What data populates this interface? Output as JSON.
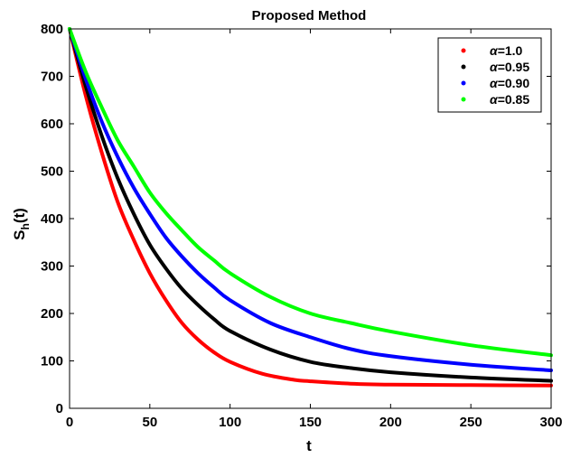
{
  "chart_data": {
    "type": "line",
    "title": "Proposed Method",
    "xlabel": "t",
    "ylabel_main": "S",
    "ylabel_sub": "h",
    "ylabel_tail": "(t)",
    "xlim": [
      0,
      300
    ],
    "ylim": [
      0,
      800
    ],
    "xticks": [
      0,
      50,
      100,
      150,
      200,
      250,
      300
    ],
    "yticks": [
      0,
      100,
      200,
      300,
      400,
      500,
      600,
      700,
      800
    ],
    "grid": false,
    "legend_position": "top-right",
    "legend_symbol": "α",
    "series": [
      {
        "name": "=1.0",
        "color": "#ff0000",
        "x": [
          0,
          10,
          20,
          30,
          40,
          50,
          60,
          70,
          80,
          90,
          100,
          120,
          140,
          150,
          175,
          200,
          250,
          300
        ],
        "y": [
          800,
          660,
          540,
          435,
          355,
          285,
          228,
          180,
          145,
          118,
          98,
          73,
          60,
          57,
          52,
          50,
          49,
          48
        ]
      },
      {
        "name": "=0.95",
        "color": "#000000",
        "x": [
          0,
          10,
          20,
          30,
          40,
          50,
          60,
          70,
          80,
          90,
          100,
          125,
          150,
          175,
          200,
          250,
          300
        ],
        "y": [
          800,
          680,
          575,
          485,
          410,
          345,
          295,
          252,
          218,
          188,
          163,
          124,
          98,
          85,
          76,
          65,
          58
        ]
      },
      {
        "name": "=0.90",
        "color": "#0000ff",
        "x": [
          0,
          10,
          20,
          30,
          40,
          50,
          60,
          70,
          80,
          90,
          100,
          125,
          150,
          175,
          200,
          250,
          300
        ],
        "y": [
          800,
          695,
          605,
          530,
          465,
          410,
          360,
          320,
          285,
          255,
          228,
          180,
          150,
          125,
          110,
          92,
          80
        ]
      },
      {
        "name": "=0.85",
        "color": "#00ff00",
        "x": [
          0,
          10,
          20,
          30,
          40,
          50,
          60,
          70,
          80,
          90,
          100,
          125,
          150,
          175,
          200,
          250,
          300
        ],
        "y": [
          800,
          710,
          635,
          565,
          510,
          455,
          412,
          375,
          340,
          312,
          285,
          235,
          200,
          180,
          162,
          133,
          112
        ]
      }
    ]
  }
}
